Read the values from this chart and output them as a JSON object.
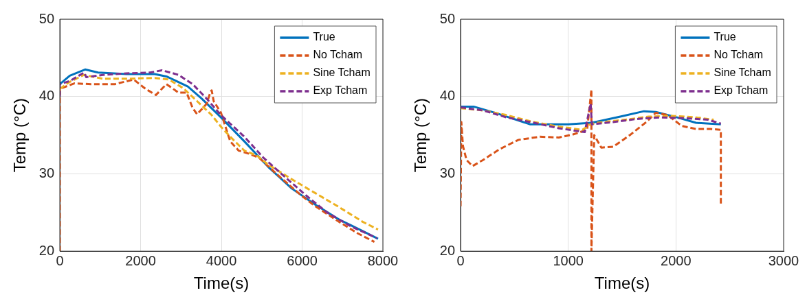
{
  "chart_data": [
    {
      "type": "line",
      "xlabel": "Time(s)",
      "ylabel": "Temp (°C)",
      "xlim": [
        0,
        8000
      ],
      "xticks": [
        0,
        2000,
        4000,
        6000,
        8000
      ],
      "ylim": [
        20,
        50
      ],
      "yticks": [
        20,
        30,
        40,
        50
      ],
      "grid": true,
      "legend": "top right",
      "series": [
        {
          "name": "True",
          "color": "#0072bd",
          "line_style": "solid",
          "x": [
            0,
            246,
            626,
            948,
            1650,
            2350,
            2640,
            3170,
            3520,
            3990,
            4570,
            5160,
            5745,
            6330,
            6915,
            7500,
            7880
          ],
          "values": [
            41.6,
            42.7,
            43.5,
            43.1,
            42.9,
            42.9,
            42.6,
            41.3,
            39.7,
            37.3,
            34.2,
            30.9,
            28.1,
            26.0,
            24.1,
            22.6,
            21.6
          ]
        },
        {
          "name": "No Tcham",
          "color": "#d95319",
          "line_style": "dashed",
          "x": [
            0,
            0,
            360,
            770,
            1360,
            1830,
            2120,
            2380,
            2640,
            2940,
            3140,
            3290,
            3400,
            3640,
            3730,
            3760,
            3810,
            3990,
            4220,
            4430,
            4630,
            4930,
            5450,
            5980,
            6330,
            6915,
            7380,
            7790
          ],
          "values": [
            20,
            41,
            41.7,
            41.6,
            41.6,
            42.2,
            41,
            40.2,
            41.6,
            40.5,
            40.5,
            38.5,
            37.7,
            39.1,
            40.6,
            40.8,
            39.4,
            37.9,
            34.2,
            33.0,
            32.7,
            32.1,
            29.6,
            27.2,
            25.8,
            23.8,
            22.3,
            21.2
          ]
        },
        {
          "name": "Sine Tcham",
          "color": "#edb120",
          "line_style": "dashed",
          "x": [
            0,
            246,
            600,
            1065,
            1650,
            2350,
            2700,
            3050,
            3400,
            3760,
            3990,
            4220,
            4570,
            4870,
            5160,
            5745,
            6330,
            6915,
            7500,
            7880
          ],
          "values": [
            41,
            41.9,
            42.8,
            42.3,
            42.3,
            42.4,
            42.2,
            41.1,
            39.4,
            37.6,
            36.1,
            34.8,
            33.0,
            32.4,
            31.2,
            29.3,
            27.5,
            25.7,
            23.8,
            22.8
          ]
        },
        {
          "name": "Exp Tcham",
          "color": "#7e2f8e",
          "line_style": "dashed",
          "x": [
            0,
            0,
            246,
            600,
            655,
            1065,
            1650,
            2235,
            2530,
            2940,
            3290,
            3640,
            3990,
            4570,
            5040,
            5510,
            6100,
            6620,
            7210,
            7850
          ],
          "values": [
            40,
            41.6,
            42.0,
            43.1,
            42.5,
            42.8,
            43.0,
            43.1,
            43.4,
            42.8,
            41.6,
            39.7,
            37.6,
            34.8,
            32.1,
            29.9,
            27.2,
            25.0,
            23.2,
            21.7
          ]
        }
      ]
    },
    {
      "type": "line",
      "xlabel": "Time(s)",
      "ylabel": "Temp (°C)",
      "xlim": [
        0,
        3000
      ],
      "xticks": [
        0,
        1000,
        2000,
        3000
      ],
      "ylim": [
        20,
        50
      ],
      "yticks": [
        20,
        30,
        40,
        50
      ],
      "grid": true,
      "legend": "top right",
      "series": [
        {
          "name": "True",
          "color": "#0072bd",
          "line_style": "solid",
          "x": [
            0,
            121,
            319,
            648,
            1000,
            1219,
            1483,
            1703,
            1813,
            2010,
            2186,
            2417
          ],
          "values": [
            38.7,
            38.7,
            37.9,
            36.4,
            36.4,
            36.6,
            37.4,
            38.1,
            38.0,
            37.3,
            36.6,
            36.4
          ]
        },
        {
          "name": "No Tcham",
          "color": "#d95319",
          "line_style": "dashed",
          "x": [
            0,
            7,
            22,
            55,
            110,
            209,
            363,
            538,
            736,
            912,
            1044,
            1175,
            1215,
            1215,
            1241,
            1307,
            1417,
            1571,
            1725,
            1813,
            1923,
            2054,
            2186,
            2318,
            2417,
            2417
          ],
          "values": [
            25.8,
            36.7,
            33.6,
            31.8,
            31.0,
            31.8,
            33.2,
            34.4,
            34.8,
            34.7,
            35.1,
            35.7,
            40.9,
            20,
            35,
            33.4,
            33.5,
            35.0,
            36.7,
            37.9,
            37.6,
            36.2,
            35.8,
            35.8,
            35.7,
            26.0
          ]
        },
        {
          "name": "Sine Tcham",
          "color": "#edb120",
          "line_style": "dashed",
          "x": [
            0,
            209,
            428,
            648,
            912,
            1131,
            1208,
            1263,
            1527,
            1747,
            1966,
            2186,
            2351
          ],
          "values": [
            38.5,
            38.2,
            37.6,
            36.8,
            36.1,
            35.7,
            36.4,
            36.6,
            37.0,
            37.4,
            37.5,
            37.3,
            37.0
          ]
        },
        {
          "name": "Exp Tcham",
          "color": "#7e2f8e",
          "line_style": "dashed",
          "x": [
            0,
            209,
            428,
            648,
            912,
            1153,
            1208,
            1219,
            1417,
            1637,
            1856,
            2076,
            2296,
            2417
          ],
          "values": [
            38.6,
            38.2,
            37.3,
            36.7,
            35.9,
            35.4,
            39.1,
            36.4,
            36.7,
            37.1,
            37.3,
            37.2,
            37.0,
            36.5
          ]
        }
      ]
    }
  ]
}
